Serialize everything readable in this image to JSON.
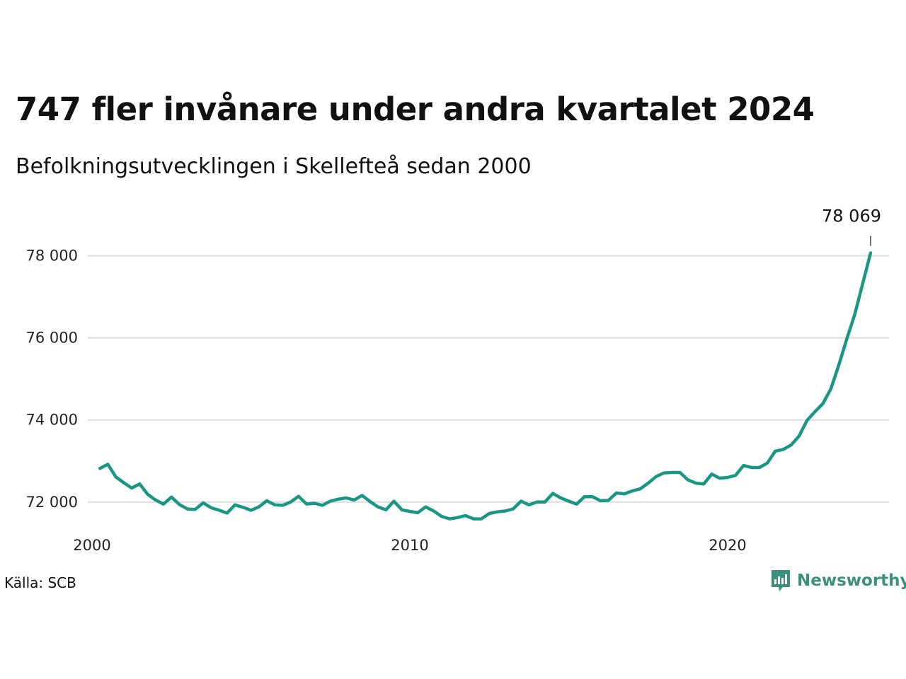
{
  "title": "747 fler invånare under andra kvartalet 2024",
  "subtitle": "Befolkningsutvecklingen i Skellefteå sedan 2000",
  "source": "Källa: SCB",
  "brand": {
    "name": "Newsworthy",
    "icon": "newsworthy-logo-icon",
    "color": "#3d8f7e"
  },
  "colors": {
    "line": "#1a9684",
    "grid": "#dddddd",
    "text": "#111111"
  },
  "chart_data": {
    "type": "line",
    "title": "",
    "xlabel": "",
    "ylabel": "",
    "xlim": [
      2000,
      2024.5
    ],
    "ylim": [
      71100,
      79200
    ],
    "grid": true,
    "x_ticks": [
      {
        "value": 2000,
        "label": "2000"
      },
      {
        "value": 2010,
        "label": "2010"
      },
      {
        "value": 2020,
        "label": "2020"
      }
    ],
    "y_ticks": [
      {
        "value": 72000,
        "label": "72 000"
      },
      {
        "value": 74000,
        "label": "74 000"
      },
      {
        "value": 76000,
        "label": "76 000"
      },
      {
        "value": 78000,
        "label": "78 000"
      }
    ],
    "end_label": "78 069",
    "x_start": 2000.25,
    "x_step": 0.25,
    "values": [
      72820,
      72920,
      72610,
      72470,
      72340,
      72440,
      72190,
      72050,
      71950,
      72120,
      71940,
      71830,
      71820,
      71980,
      71860,
      71800,
      71730,
      71930,
      71870,
      71800,
      71880,
      72030,
      71930,
      71920,
      72000,
      72140,
      71950,
      71970,
      71920,
      72020,
      72070,
      72100,
      72050,
      72160,
      72010,
      71880,
      71810,
      72020,
      71810,
      71770,
      71740,
      71880,
      71780,
      71650,
      71590,
      71620,
      71670,
      71590,
      71590,
      71720,
      71760,
      71780,
      71830,
      72020,
      71930,
      72000,
      72000,
      72210,
      72100,
      72020,
      71950,
      72130,
      72130,
      72030,
      72040,
      72220,
      72200,
      72270,
      72320,
      72460,
      72620,
      72710,
      72720,
      72720,
      72540,
      72460,
      72440,
      72680,
      72580,
      72600,
      72650,
      72890,
      72840,
      72840,
      72950,
      73240,
      73280,
      73390,
      73610,
      73990,
      74200,
      74400,
      74760,
      75340,
      75970,
      76570,
      77320,
      78069
    ]
  }
}
